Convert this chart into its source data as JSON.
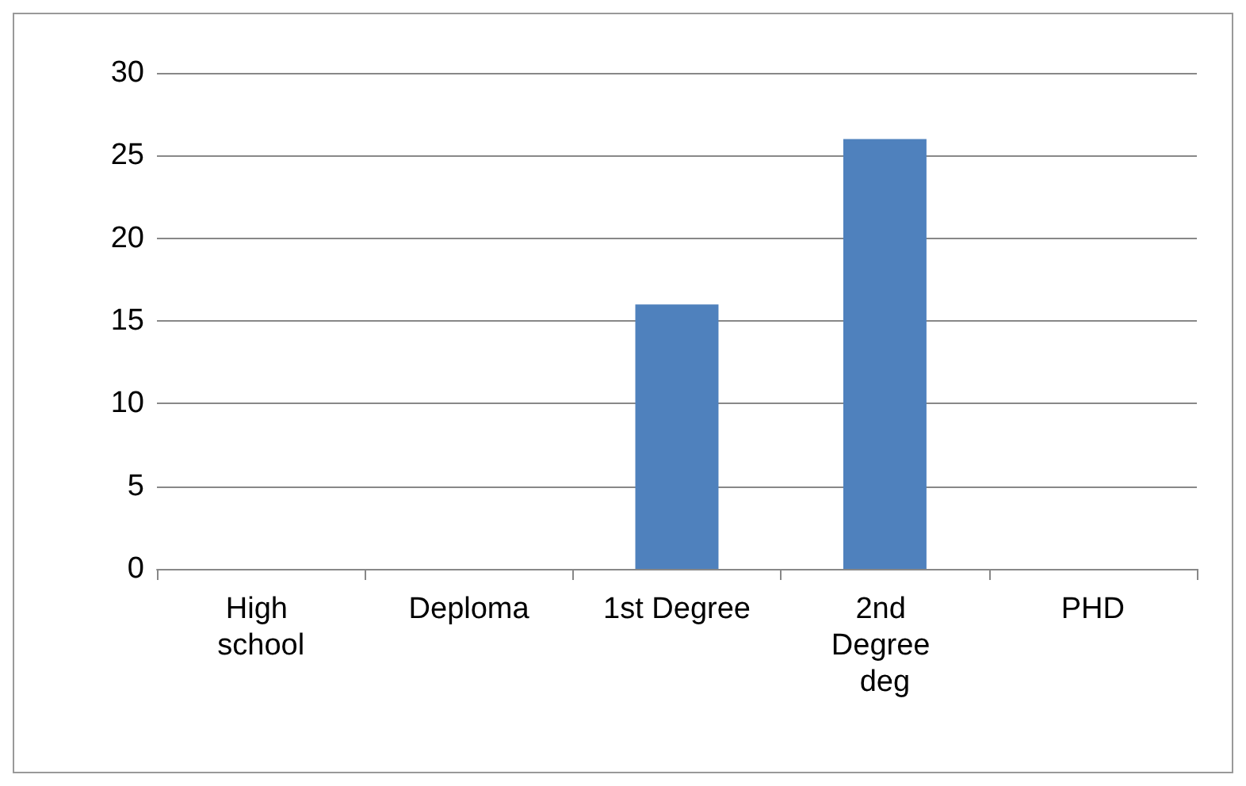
{
  "chart_data": {
    "type": "bar",
    "categories": [
      "High school",
      "Deploma",
      "1st Degree",
      "2nd Degree deg",
      "PHD"
    ],
    "values": [
      0,
      0,
      16,
      26,
      0
    ],
    "color": "#4f81bd",
    "ylim": [
      0,
      30
    ],
    "yticks": [
      0,
      5,
      10,
      15,
      20,
      25,
      30
    ],
    "grid": "y"
  }
}
